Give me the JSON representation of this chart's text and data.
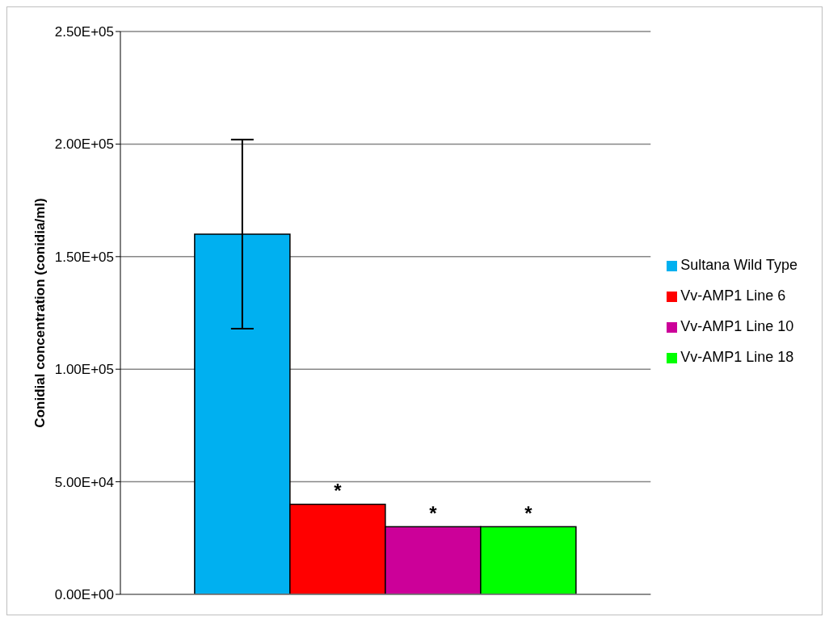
{
  "chart_data": {
    "type": "bar",
    "ylabel": "Conidial concentration (conidia/ml)",
    "categories": [
      null
    ],
    "series": [
      {
        "name": "Sultana Wild Type",
        "color": "#00b0f0",
        "values": [
          160000
        ],
        "errors": [
          42000
        ]
      },
      {
        "name": "Vv-AMP1 Line 6",
        "color": "#ff0000",
        "values": [
          40000
        ]
      },
      {
        "name": "Vv-AMP1 Line 10",
        "color": "#cc0099",
        "values": [
          30000
        ]
      },
      {
        "name": "Vv-AMP1 Line 18",
        "color": "#00ff00",
        "values": [
          30000
        ]
      }
    ],
    "ylim": [
      0,
      250000
    ],
    "yticks": [
      {
        "value": 0,
        "label": "0.00E+00"
      },
      {
        "value": 50000,
        "label": "5.00E+04"
      },
      {
        "value": 100000,
        "label": "1.00E+05"
      },
      {
        "value": 150000,
        "label": "1.50E+05"
      },
      {
        "value": 200000,
        "label": "2.00E+05"
      },
      {
        "value": 250000,
        "label": "2.50E+05"
      }
    ],
    "grid": "y",
    "legend": "right",
    "annotations": [
      "*",
      "*",
      "*"
    ]
  }
}
